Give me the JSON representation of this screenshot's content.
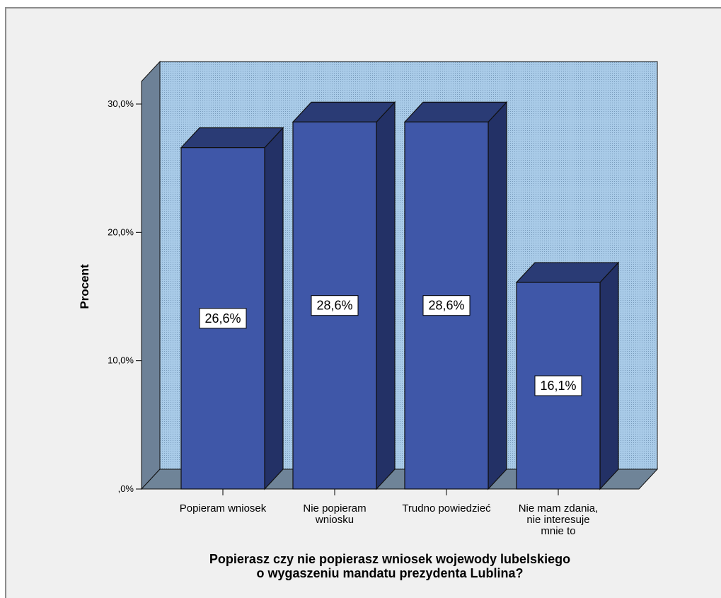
{
  "chart_data": {
    "type": "bar",
    "categories": [
      "Popieram wniosek",
      "Nie popieram wniosku",
      "Trudno powiedzieć",
      "Nie mam zdania, nie interesuje mnie to"
    ],
    "category_label_lines": [
      [
        "Popieram wniosek"
      ],
      [
        "Nie popieram",
        "wniosku"
      ],
      [
        "Trudno powiedzieć"
      ],
      [
        "Nie mam zdania,",
        "nie interesuje",
        "mnie to"
      ]
    ],
    "values": [
      26.6,
      28.6,
      28.6,
      16.1
    ],
    "data_labels": [
      "26,6%",
      "28,6%",
      "28,6%",
      "16,1%"
    ],
    "title_lines": [
      "Popierasz czy nie popierasz wniosek wojewody lubelskiego",
      "o wygaszeniu mandatu prezydenta Lublina?"
    ],
    "xlabel": "Popierasz czy nie popierasz wniosek wojewody lubelskiego o wygaszeniu mandatu prezydenta Lublina?",
    "ylabel": "Procent",
    "ylim": [
      0,
      30
    ],
    "yticks": [
      0,
      10,
      20,
      30
    ],
    "ytick_labels": [
      ",0%",
      "10,0%",
      "20,0%",
      "30,0%"
    ],
    "style": "3d",
    "colors": {
      "bar_front": "#3f57a8",
      "bar_side": "#233166",
      "bar_top": "#2a3b75",
      "back_wall": "#a9cbe8",
      "side_wall": "#6d8197",
      "floor": "#6f8498",
      "stroke": "#111111"
    }
  }
}
